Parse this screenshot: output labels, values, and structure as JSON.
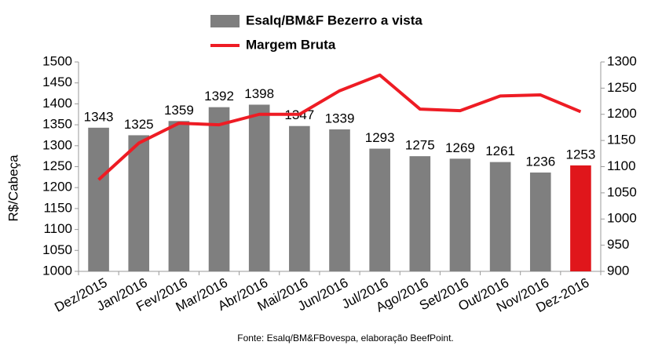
{
  "chart_data": {
    "type": "bar_line",
    "y_label": "R$/Cabeça",
    "source": "Fonte:  Esalq/BM&FBovespa,  elaboração  BeefPoint.",
    "categories": [
      "Dez/2015",
      "Jan/2016",
      "Fev/2016",
      "Mar/2016",
      "Abr/2016",
      "Mai/2016",
      "Jun/2016",
      "Jul/2016",
      "Ago/2016",
      "Set/2016",
      "Out/2016",
      "Nov/2016",
      "Dez-2016"
    ],
    "series": [
      {
        "name": "Esalq/BM&F Bezerro a vista",
        "type": "bar",
        "color": "#7f7f7f",
        "colors": [
          "#7f7f7f",
          "#7f7f7f",
          "#7f7f7f",
          "#7f7f7f",
          "#7f7f7f",
          "#7f7f7f",
          "#7f7f7f",
          "#7f7f7f",
          "#7f7f7f",
          "#7f7f7f",
          "#7f7f7f",
          "#7f7f7f",
          "#e0161b"
        ],
        "values": [
          1343,
          1325,
          1359,
          1392,
          1398,
          1347,
          1339,
          1293,
          1275,
          1269,
          1261,
          1236,
          1253
        ]
      },
      {
        "name": "Margem Bruta",
        "type": "line",
        "axis": "y2",
        "color": "#ee1c24",
        "values": [
          1075,
          1145,
          1183,
          1180,
          1200,
          1200,
          1245,
          1275,
          1210,
          1207,
          1235,
          1237,
          1205
        ]
      }
    ],
    "ylim": [
      1000,
      1500
    ],
    "yticks": [
      1000,
      1050,
      1100,
      1150,
      1200,
      1250,
      1300,
      1350,
      1400,
      1450,
      1500
    ],
    "y2lim": [
      900,
      1300
    ],
    "y2ticks": [
      900,
      950,
      1000,
      1050,
      1100,
      1150,
      1200,
      1250,
      1300
    ]
  }
}
